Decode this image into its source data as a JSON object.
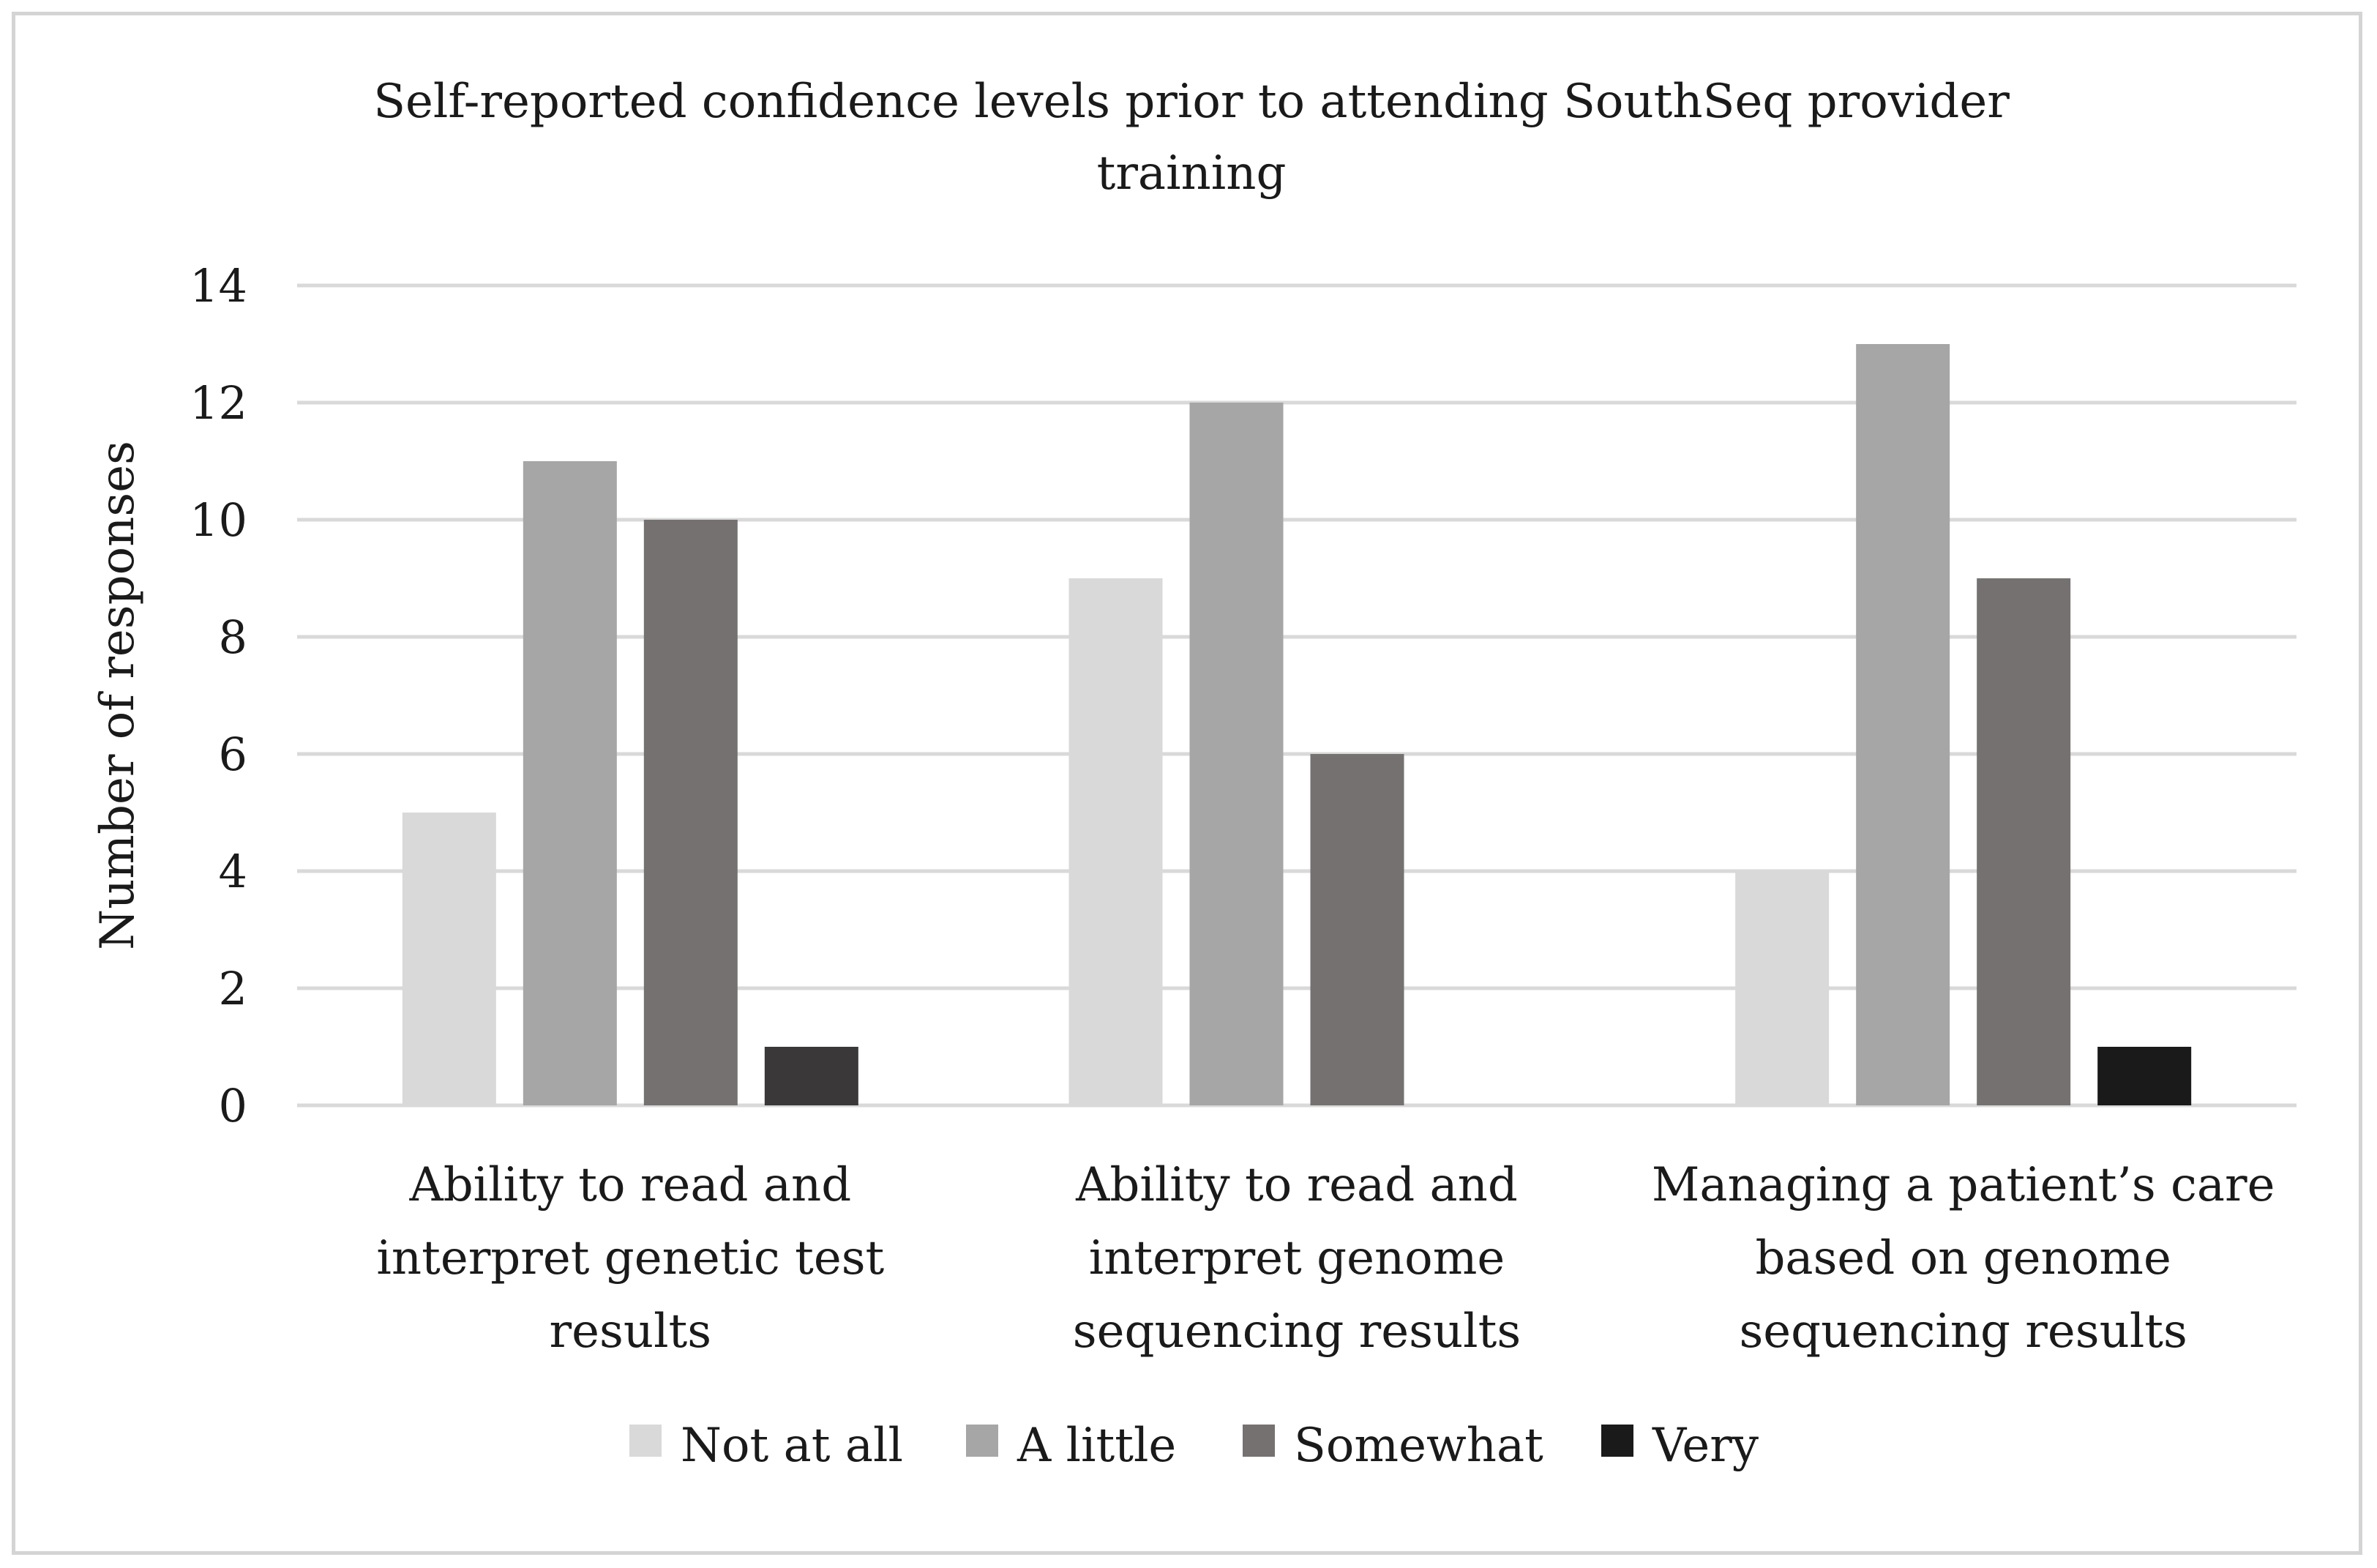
{
  "chart_data": {
    "type": "bar",
    "title": "Self-reported confidence levels prior to attending SouthSeq provider training",
    "title_lines": [
      "Self-reported confidence levels prior to attending SouthSeq provider",
      "training"
    ],
    "xlabel": "",
    "ylabel": "Number of responses",
    "ylim": [
      0,
      14
    ],
    "yticks": [
      0,
      2,
      4,
      6,
      8,
      10,
      12,
      14
    ],
    "grid": true,
    "legend_position": "bottom",
    "categories": [
      "Ability to read and interpret genetic test results",
      "Ability to read and interpret genome sequencing results",
      "Managing a patient’s care based on genome sequencing results"
    ],
    "category_lines": [
      [
        "Ability to read and",
        "interpret genetic test",
        "results"
      ],
      [
        "Ability to read and",
        "interpret genome",
        "sequencing results"
      ],
      [
        "Managing a patient’s care",
        "based on genome",
        "sequencing results"
      ]
    ],
    "series": [
      {
        "name": "Not at all",
        "values": [
          5,
          9,
          4
        ],
        "color": "#d9d9d9"
      },
      {
        "name": "A little",
        "values": [
          11,
          12,
          13
        ],
        "color": "#a6a6a6"
      },
      {
        "name": "Somewhat",
        "values": [
          10,
          6,
          9
        ],
        "color": "#767171"
      },
      {
        "name": "Very",
        "values": [
          1,
          0,
          1
        ],
        "color": "#1a1a1a",
        "colors_by_point": [
          "#3a3838",
          "#3a3838",
          "#1a1a1a"
        ]
      }
    ]
  }
}
